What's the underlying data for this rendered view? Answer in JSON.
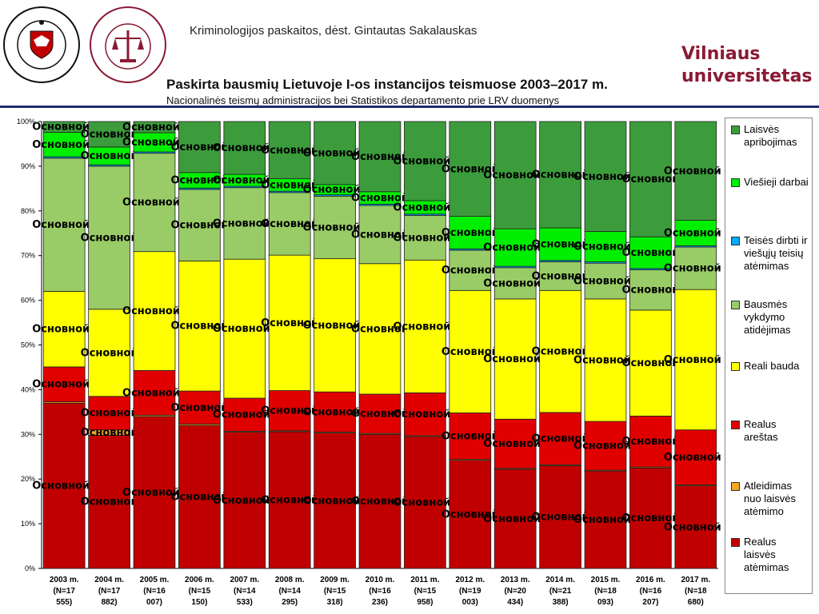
{
  "header": {
    "course": "Kriminologijos paskaitos, dėst. Gintautas Sakalauskas",
    "brand_line1": "Vilniaus",
    "brand_line2": "universitetas",
    "logo1_text": "VILNIUS UNIVERSITETAS · UNIVERSITAS VILNENSIS · 1579",
    "logo2_text": "TEISĖS FAKULTETAS · VILNIAUS UNIVERSITETAS · 1641"
  },
  "chart_data": {
    "type": "bar",
    "stacked": true,
    "percent": true,
    "title": "Paskirta bausmių Lietuvoje I-os instancijos teismuose 2003–2017 m.",
    "subtitle": "Nacionalinės teismų administracijos bei Statistikos departamento prie LRV duomenys",
    "categories": [
      "2003 m. (N=17 555)",
      "2004 m. (N=17 882)",
      "2005 m. (N=16 007)",
      "2006 m. (N=15 150)",
      "2007 m. (N=14 533)",
      "2008 m. (N=14 295)",
      "2009 m. (N=15 318)",
      "2010 m. (N=16 236)",
      "2011 m. (N=15 958)",
      "2012 m. (N=19 003)",
      "2013 m. (N=20 434)",
      "2014 m. (N=21 388)",
      "2015 m. (N=18 093)",
      "2016 m. (N=16 207)",
      "2017 m. (N=18 680)"
    ],
    "category_lines": [
      [
        "2003 m.",
        "(N=17",
        "555)"
      ],
      [
        "2004 m.",
        "(N=17",
        "882)"
      ],
      [
        "2005 m.",
        "(N=16",
        "007)"
      ],
      [
        "2006 m.",
        "(N=15",
        "150)"
      ],
      [
        "2007 m.",
        "(N=14",
        "533)"
      ],
      [
        "2008 m.",
        "(N=14",
        "295)"
      ],
      [
        "2009 m.",
        "(N=15",
        "318)"
      ],
      [
        "2010 m.",
        "(N=16",
        "236)"
      ],
      [
        "2011 m.",
        "(N=15",
        "958)"
      ],
      [
        "2012 m.",
        "(N=19",
        "003)"
      ],
      [
        "2013 m.",
        "(N=20",
        "434)"
      ],
      [
        "2014 m.",
        "(N=21",
        "388)"
      ],
      [
        "2015 m.",
        "(N=18",
        "093)"
      ],
      [
        "2016 m.",
        "(N=16",
        "207)"
      ],
      [
        "2017 m.",
        "(N=18",
        "680)"
      ]
    ],
    "ylim": [
      0,
      100
    ],
    "yticks": [
      "0%",
      "10%",
      "20%",
      "30%",
      "40%",
      "50%",
      "60%",
      "70%",
      "80%",
      "90%",
      "100%"
    ],
    "series": [
      {
        "name": "Realus laisvės atėmimas",
        "color": "#c00000",
        "values": [
          37.0,
          29.8,
          34.0,
          32.0,
          30.5,
          30.6,
          30.3,
          30.0,
          29.5,
          24.2,
          22.2,
          23.0,
          21.8,
          22.5,
          18.5
        ]
      },
      {
        "name": "Atleidimas nuo laisvės atėmimo",
        "color": "#f5a623",
        "values": [
          0.3,
          1.2,
          0.3,
          0.3,
          0.2,
          0.2,
          0.2,
          0.2,
          0.2,
          0.2,
          0.2,
          0.2,
          0.2,
          0.2,
          0.2
        ]
      },
      {
        "name": "Realus areštas",
        "color": "#e00000",
        "values": [
          7.8,
          7.5,
          10.0,
          7.4,
          7.4,
          9.0,
          9.0,
          8.8,
          9.6,
          10.4,
          11.0,
          11.7,
          10.9,
          11.4,
          12.3
        ]
      },
      {
        "name": "Reali bauda",
        "color": "#ffff00",
        "values": [
          16.9,
          19.5,
          26.6,
          29.1,
          31.1,
          30.3,
          29.8,
          29.2,
          29.7,
          27.4,
          26.9,
          27.3,
          27.4,
          23.7,
          31.4
        ]
      },
      {
        "name": "Bausmės vykdymo atidėjimas",
        "color": "#99cc66",
        "values": [
          29.8,
          32.0,
          22.0,
          16.0,
          16.0,
          14.0,
          14.0,
          13.0,
          10.0,
          9.0,
          7.0,
          6.4,
          8.0,
          9.0,
          9.5
        ]
      },
      {
        "name": "Teisės dirbti ir viešųjų teisių atėmimas",
        "color": "#00aaff",
        "values": [
          0.3,
          0.3,
          0.3,
          0.3,
          0.3,
          0.3,
          0.3,
          0.3,
          0.3,
          0.3,
          0.3,
          0.3,
          0.3,
          0.3,
          0.3
        ]
      },
      {
        "name": "Viešieji darbai",
        "color": "#00ee00",
        "values": [
          5.5,
          4.0,
          4.3,
          3.5,
          2.7,
          2.8,
          2.3,
          2.8,
          3.0,
          7.3,
          8.4,
          7.3,
          6.8,
          7.1,
          5.7
        ]
      },
      {
        "name": "Laisvės apribojimas",
        "color": "#3c9c3c",
        "values": [
          2.4,
          5.7,
          2.5,
          11.4,
          11.8,
          12.8,
          14.1,
          15.7,
          17.7,
          21.2,
          24.0,
          23.8,
          24.6,
          25.8,
          22.1
        ]
      }
    ],
    "data_label_text": "Основной",
    "legend_position": "right"
  },
  "legend_order": [
    7,
    6,
    5,
    4,
    3,
    2,
    1,
    0
  ]
}
